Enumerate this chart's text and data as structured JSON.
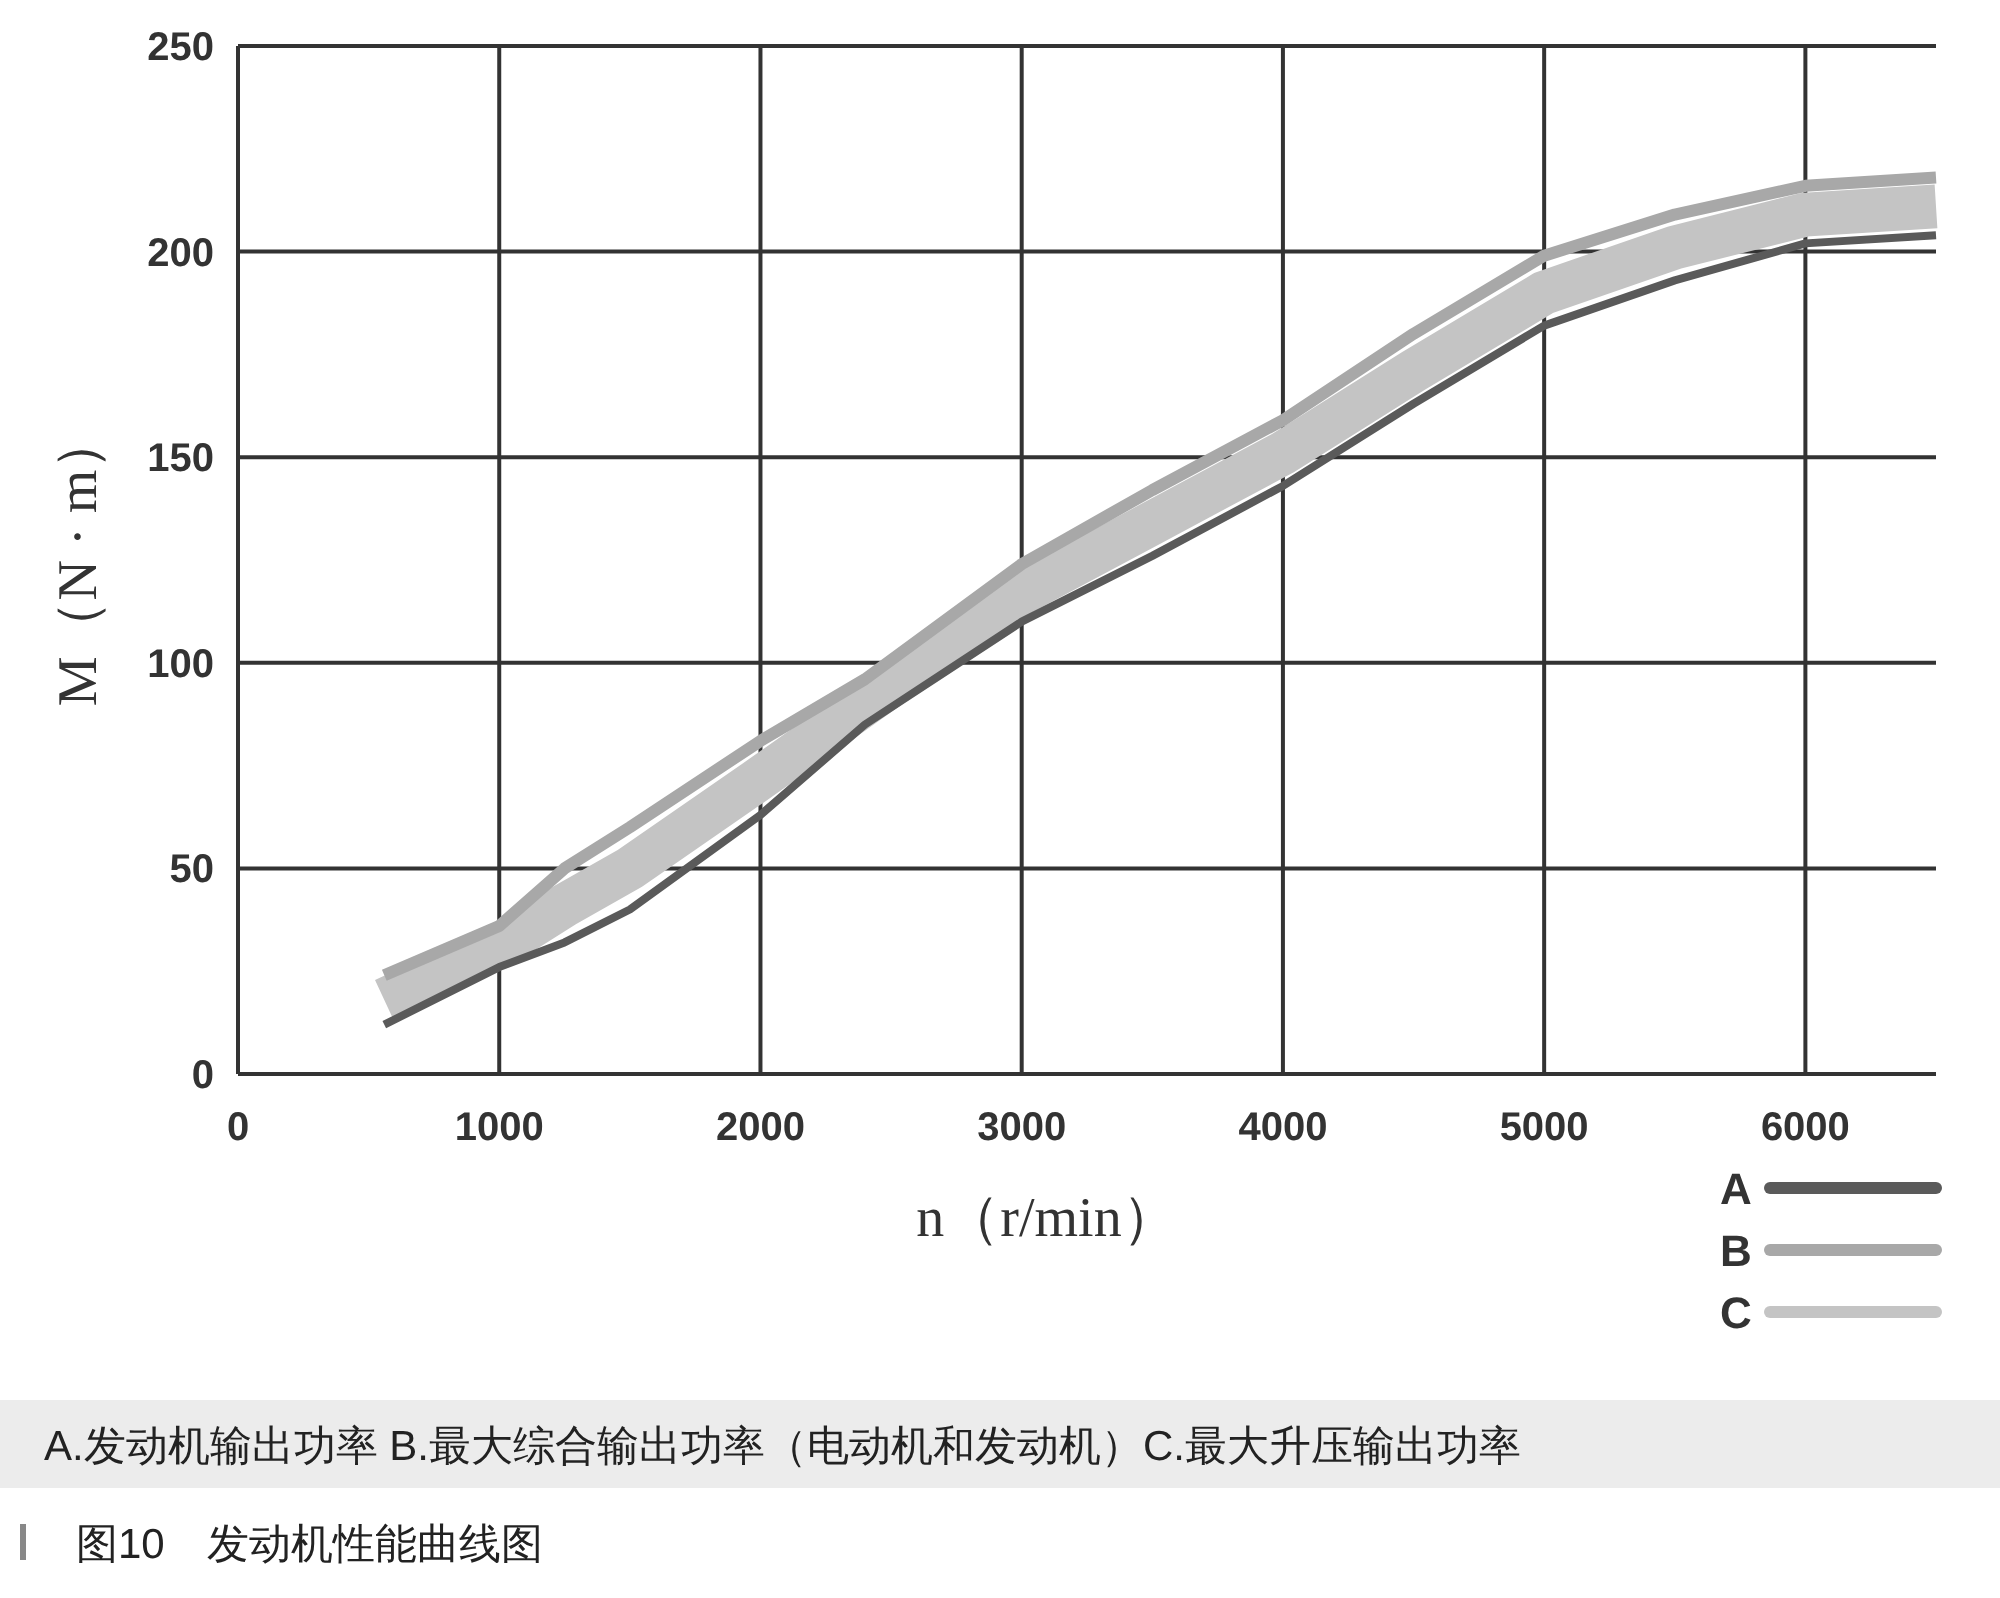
{
  "chart_data": {
    "type": "line",
    "xlabel": "n（r/min）",
    "ylabel": "M（N · m）",
    "x": [
      560,
      1000,
      1250,
      1500,
      2000,
      2400,
      3000,
      3500,
      4000,
      4500,
      5000,
      5500,
      6000,
      6500
    ],
    "series": [
      {
        "name": "A",
        "color": "#5a5a5a",
        "values": [
          12,
          26,
          32,
          40,
          63,
          85,
          110,
          126,
          143,
          163,
          182,
          193,
          202,
          204
        ]
      },
      {
        "name": "B",
        "color": "#a8a8a8",
        "values": [
          24,
          36,
          50,
          60,
          81,
          96,
          124,
          142,
          159,
          180,
          199,
          209,
          216,
          218
        ]
      },
      {
        "name": "C",
        "color": "#c4c4c4",
        "values": [
          18,
          31,
          41,
          50,
          72,
          90,
          117,
          134,
          151,
          171,
          190,
          201,
          209,
          211
        ]
      }
    ],
    "xlim": [
      0,
      6500
    ],
    "xticks": [
      0,
      1000,
      2000,
      3000,
      4000,
      5000,
      6000
    ],
    "ylim": [
      0,
      250
    ],
    "yticks": [
      0,
      50,
      100,
      150,
      200,
      250
    ],
    "grid": true,
    "legend": "bottom right",
    "marker": "none",
    "line_style": "solid",
    "annotations": [
      "A.发动机输出功率 B.最大综合输出功率（电动机和发动机）C.最大升压输出功率",
      "图10　发动机性能曲线图"
    ]
  }
}
